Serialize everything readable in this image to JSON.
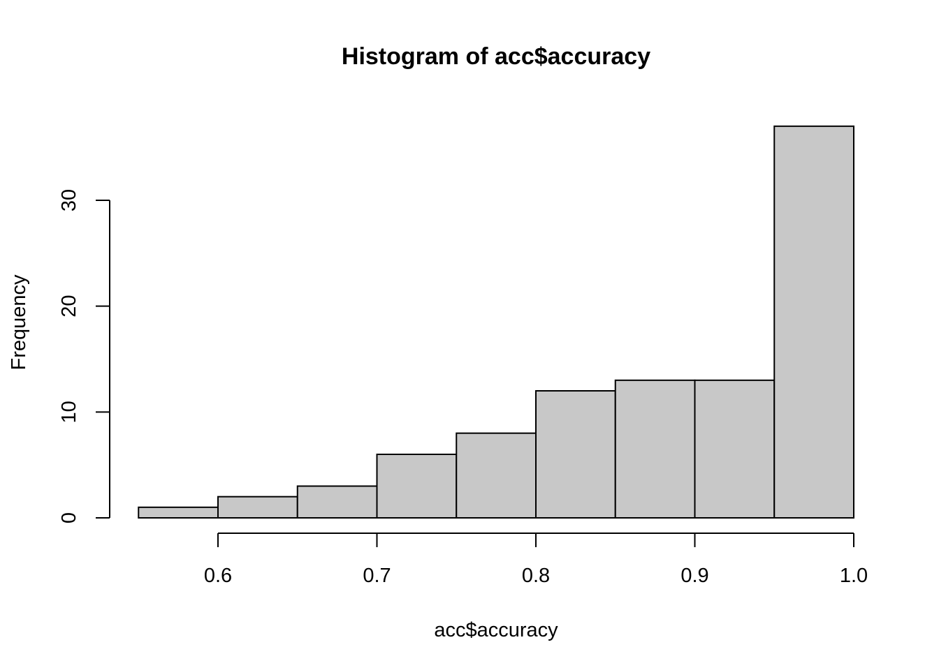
{
  "chart_data": {
    "type": "bar",
    "title": "Histogram of acc$accuracy",
    "xlabel": "acc$accuracy",
    "ylabel": "Frequency",
    "bins": [
      {
        "start": 0.55,
        "end": 0.6,
        "count": 1
      },
      {
        "start": 0.6,
        "end": 0.65,
        "count": 2
      },
      {
        "start": 0.65,
        "end": 0.7,
        "count": 3
      },
      {
        "start": 0.7,
        "end": 0.75,
        "count": 6
      },
      {
        "start": 0.75,
        "end": 0.8,
        "count": 8
      },
      {
        "start": 0.8,
        "end": 0.85,
        "count": 12
      },
      {
        "start": 0.85,
        "end": 0.9,
        "count": 13
      },
      {
        "start": 0.9,
        "end": 0.95,
        "count": 13
      },
      {
        "start": 0.95,
        "end": 1.0,
        "count": 37
      }
    ],
    "x_ticks": [
      {
        "value": 0.6,
        "label": "0.6"
      },
      {
        "value": 0.7,
        "label": "0.7"
      },
      {
        "value": 0.8,
        "label": "0.8"
      },
      {
        "value": 0.9,
        "label": "0.9"
      },
      {
        "value": 1.0,
        "label": "1.0"
      }
    ],
    "y_ticks": [
      {
        "value": 0,
        "label": "0"
      },
      {
        "value": 10,
        "label": "10"
      },
      {
        "value": 20,
        "label": "20"
      },
      {
        "value": 30,
        "label": "30"
      }
    ],
    "bar_fill": "#c8c8c8",
    "bar_stroke": "#000000",
    "grid": false,
    "legend": "none"
  }
}
